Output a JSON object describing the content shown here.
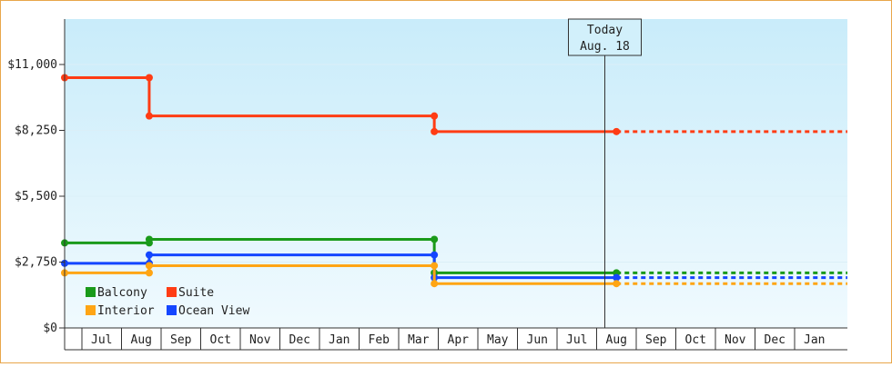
{
  "chart_data": {
    "type": "line",
    "step": true,
    "x_axis_months": [
      "Jul",
      "Aug",
      "Sep",
      "Oct",
      "Nov",
      "Dec",
      "Jan",
      "Feb",
      "Mar",
      "Apr",
      "May",
      "Jun",
      "Jul",
      "Aug",
      "Sep",
      "Oct",
      "Nov",
      "Dec",
      "Jan"
    ],
    "y_ticks": [
      {
        "value": 0,
        "label": "$0"
      },
      {
        "value": 2750,
        "label": "$2,750"
      },
      {
        "value": 5500,
        "label": "$5,500"
      },
      {
        "value": 8250,
        "label": "$8,250"
      },
      {
        "value": 11000,
        "label": "$11,000"
      }
    ],
    "ylim": [
      0,
      11000
    ],
    "today": {
      "line1": "Today",
      "line2": "Aug. 18",
      "month_index": 13
    },
    "legend": [
      {
        "label": "Balcony",
        "color": "#1a9a1a"
      },
      {
        "label": "Suite",
        "color": "#ff3c14"
      },
      {
        "label": "Interior",
        "color": "#ffa514"
      },
      {
        "label": "Ocean View",
        "color": "#1446ff"
      }
    ],
    "series": [
      {
        "name": "Suite",
        "color": "#ff3c14",
        "points": [
          [
            -0.5,
            10450
          ],
          [
            1.2,
            10450
          ],
          [
            1.2,
            8850
          ],
          [
            8.4,
            8850
          ],
          [
            8.4,
            8200
          ],
          [
            13.0,
            8200
          ]
        ],
        "projection_to": 19.5
      },
      {
        "name": "Balcony",
        "color": "#1a9a1a",
        "points": [
          [
            -0.5,
            3550
          ],
          [
            1.2,
            3550
          ],
          [
            1.2,
            3700
          ],
          [
            8.4,
            3700
          ],
          [
            8.4,
            2300
          ],
          [
            13.0,
            2300
          ]
        ],
        "projection_to": 19.5
      },
      {
        "name": "Ocean View",
        "color": "#1446ff",
        "points": [
          [
            -0.5,
            2700
          ],
          [
            1.2,
            2700
          ],
          [
            1.2,
            3050
          ],
          [
            8.4,
            3050
          ],
          [
            8.4,
            2100
          ],
          [
            13.0,
            2100
          ]
        ],
        "projection_to": 19.5
      },
      {
        "name": "Interior",
        "color": "#ffa514",
        "points": [
          [
            -0.5,
            2300
          ],
          [
            1.2,
            2300
          ],
          [
            1.2,
            2600
          ],
          [
            8.4,
            2600
          ],
          [
            8.4,
            1850
          ],
          [
            13.0,
            1850
          ]
        ],
        "projection_to": 19.5
      }
    ]
  }
}
